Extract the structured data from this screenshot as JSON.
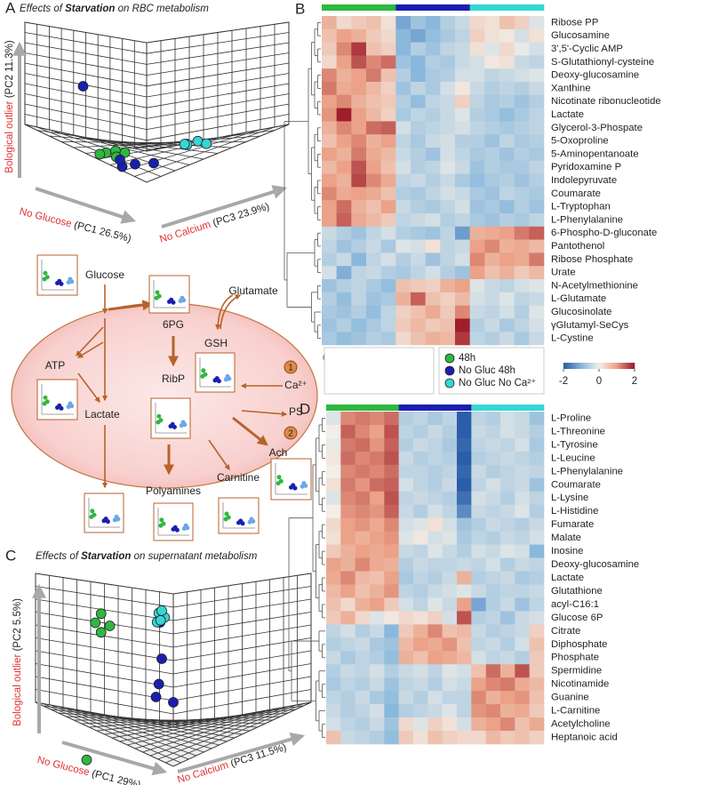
{
  "panel_a": {
    "letter": "A",
    "title": [
      "Effects of ",
      "Starvation",
      " on RBC metabolism"
    ],
    "y_label": [
      "Bological outlier ",
      "(PC2  11.3%)"
    ],
    "x1_label": [
      "No Glucose ",
      "(PC1 26.5%)"
    ],
    "x2_label": [
      "No Calcium ",
      "(PC3 23.9%)"
    ],
    "series": [
      {
        "values": [
          [
            0.7,
            -0.95,
            0
          ],
          [
            0.6,
            -0.9,
            0.05
          ],
          [
            0.5,
            -0.92,
            0.1
          ],
          [
            0.75,
            -0.98,
            -0.05
          ],
          [
            0.55,
            -1.0,
            0.02
          ]
        ]
      },
      {
        "values": [
          [
            0.3,
            -1.1,
            -0.1
          ],
          [
            0.2,
            -1.05,
            0
          ],
          [
            0.4,
            -1.0,
            -0.05
          ],
          [
            0.0,
            -1.0,
            0.1
          ],
          [
            1.1,
            0.3,
            0
          ]
        ]
      },
      {
        "values": [
          [
            0.05,
            -0.76,
            0.6
          ],
          [
            0.0,
            -0.72,
            0.72
          ],
          [
            -0.05,
            -0.78,
            0.8
          ],
          [
            0.1,
            -0.8,
            0.65
          ],
          [
            0.02,
            -0.74,
            0.55
          ]
        ]
      }
    ]
  },
  "panel_c": {
    "letter": "C",
    "title": [
      "Effects of ",
      "Starvation",
      " on supernatant metabolism"
    ],
    "y_label": [
      "Bological outlier ",
      "(PC2  5.5%)"
    ],
    "x1_label": [
      "No Glucose ",
      "(PC1 29%)"
    ],
    "x2_label": [
      "No Calcium ",
      "(PC3 11.5%)"
    ],
    "series": [
      {
        "values": [
          [
            1.2,
            0.97,
            -0.05
          ],
          [
            1.25,
            0.8,
            -0.1
          ],
          [
            1.1,
            0.75,
            0
          ],
          [
            1.2,
            0.62,
            -0.05
          ],
          [
            1.5,
            -1.83,
            0
          ]
        ]
      },
      {
        "values": [
          [
            0.2,
            0.97,
            -0.03
          ],
          [
            0.25,
            -0.2,
            0
          ],
          [
            0.3,
            -0.45,
            0
          ],
          [
            0,
            -0.5,
            0
          ],
          [
            0.15,
            0.3,
            -0.05
          ]
        ]
      },
      {
        "values": [
          [
            0.25,
            1.13,
            0
          ],
          [
            0.2,
            1.05,
            0.05
          ],
          [
            0.15,
            1.2,
            -0.05
          ],
          [
            0.3,
            0.95,
            0.02
          ],
          [
            0.22,
            1.0,
            0
          ]
        ]
      }
    ]
  },
  "legend": {
    "series": [
      {
        "name": "48h",
        "color": "#2fb83f"
      },
      {
        "name": "No Gluc 48h",
        "color": "#1a1fb0"
      },
      {
        "name": "No Gluc No Ca²⁺",
        "color": "#35d6d6"
      }
    ]
  },
  "pathway": {
    "nodes": [
      "Glucose",
      "6PG",
      "Glutamate",
      "GSH",
      "ATP",
      "RibP",
      "Ca²⁺",
      "PS",
      "Lactate",
      "Polyamines",
      "Carnitine",
      "Ach"
    ],
    "markers": [
      "1",
      "2",
      "1",
      "2"
    ]
  },
  "panel_b": {
    "letter": "B",
    "column_colors": [
      "#2fb83f",
      "#2fb83f",
      "#2fb83f",
      "#2fb83f",
      "#2fb83f",
      "#1a1fb0",
      "#1a1fb0",
      "#1a1fb0",
      "#1a1fb0",
      "#1a1fb0",
      "#35d6d6",
      "#35d6d6",
      "#35d6d6",
      "#35d6d6",
      "#35d6d6"
    ],
    "rows": [
      "Ribose PP",
      "Glucosamine",
      "3',5'-Cyclic AMP",
      "S-Glutathionyl-cysteine",
      "Deoxy-glucosamine",
      "Xanthine",
      "Nicotinate ribonucleotide",
      "Lactate",
      "Glycerol-3-Phospate",
      "5-Oxoproline",
      "5-Aminopentanoate",
      "Pyridoxamine P",
      "Indolepyruvate",
      "Coumarate",
      "L-Tryptophan",
      "L-Phenylalanine",
      "6-Phospho-D-gluconate",
      "Pantothenol",
      "Ribose Phosphate",
      "Urate",
      "N-Acetylmethionine",
      "L-Glutamate",
      "Glucosinolate",
      "γGlutamyl-SeCys",
      "L-Cystine"
    ],
    "values": [
      [
        0.8,
        0.3,
        0.5,
        0.6,
        0.2,
        -1.2,
        -0.8,
        -1.0,
        -0.6,
        -0.4,
        0.3,
        0.2,
        0.6,
        0.4,
        -0.2
      ],
      [
        0.6,
        1.0,
        0.8,
        0.5,
        0.3,
        -1.0,
        -1.2,
        -0.9,
        -0.7,
        -0.5,
        0.4,
        0.2,
        0.1,
        -0.3,
        0.2
      ],
      [
        0.5,
        1.2,
        1.8,
        0.6,
        0.4,
        -1.0,
        -0.6,
        -0.8,
        -0.5,
        -0.4,
        0.2,
        -0.2,
        0.3,
        -0.1,
        -0.3
      ],
      [
        0.3,
        1.0,
        1.6,
        1.2,
        1.4,
        -0.8,
        -1.0,
        -0.6,
        -0.7,
        -0.4,
        -0.3,
        0.1,
        0.2,
        -0.4,
        -0.5
      ],
      [
        1.2,
        0.8,
        1.0,
        1.3,
        0.6,
        -0.6,
        -1.0,
        -0.7,
        -0.6,
        -0.3,
        -0.3,
        -0.5,
        -0.4,
        -0.3,
        -0.2
      ],
      [
        1.3,
        0.9,
        1.0,
        0.7,
        0.4,
        -0.8,
        -0.5,
        -0.7,
        -0.3,
        0.1,
        -0.4,
        -0.6,
        -0.5,
        -0.6,
        -0.4
      ],
      [
        1.0,
        1.2,
        0.8,
        0.6,
        0.5,
        -0.6,
        -0.9,
        -0.5,
        -0.4,
        0.4,
        -0.5,
        -0.7,
        -0.6,
        -0.8,
        -0.6
      ],
      [
        1.1,
        2.0,
        1.0,
        0.7,
        0.4,
        -0.7,
        -0.5,
        -0.6,
        -0.4,
        -0.2,
        -0.6,
        -0.7,
        -0.9,
        -0.7,
        -0.5
      ],
      [
        0.8,
        1.2,
        1.0,
        1.4,
        1.5,
        -0.3,
        -0.6,
        -0.5,
        -0.4,
        -0.3,
        -0.5,
        -0.6,
        -0.7,
        -0.6,
        -0.5
      ],
      [
        0.6,
        1.0,
        1.2,
        0.8,
        1.0,
        -0.5,
        -0.7,
        -0.4,
        -0.3,
        -0.6,
        -0.6,
        -0.8,
        -0.5,
        -0.7,
        -0.6
      ],
      [
        1.0,
        0.8,
        1.3,
        0.9,
        0.7,
        -0.4,
        -0.6,
        -0.8,
        -0.3,
        -0.5,
        -0.7,
        -0.6,
        -0.8,
        -0.6,
        -0.7
      ],
      [
        0.7,
        1.0,
        1.6,
        1.0,
        0.6,
        -0.3,
        -0.6,
        -0.5,
        -0.2,
        -0.4,
        -0.8,
        -0.6,
        -0.7,
        -0.7,
        -0.5
      ],
      [
        1.0,
        0.8,
        1.7,
        1.2,
        0.9,
        -0.5,
        -0.4,
        -0.6,
        -0.4,
        -0.7,
        -0.9,
        -0.7,
        -0.6,
        -0.8,
        -0.6
      ],
      [
        1.2,
        0.9,
        1.0,
        0.9,
        0.6,
        -0.6,
        -0.7,
        -0.5,
        -0.3,
        -0.4,
        -0.7,
        -0.8,
        -0.5,
        -0.6,
        -0.7
      ],
      [
        1.0,
        1.4,
        0.8,
        0.6,
        1.0,
        -0.4,
        -0.6,
        -0.7,
        -0.5,
        -0.3,
        -0.8,
        -0.7,
        -0.9,
        -0.6,
        -0.8
      ],
      [
        1.0,
        1.5,
        0.9,
        0.7,
        0.5,
        -0.5,
        -0.4,
        -0.3,
        -0.6,
        -0.5,
        -0.7,
        -0.8,
        -0.6,
        -0.7,
        -0.5
      ],
      [
        -0.4,
        -0.6,
        -0.8,
        -0.5,
        -0.3,
        -0.6,
        -0.7,
        -0.8,
        -0.5,
        -1.3,
        0.8,
        0.9,
        1.0,
        1.3,
        1.5
      ],
      [
        -0.5,
        -0.8,
        -0.6,
        -0.4,
        -0.7,
        -0.2,
        -0.3,
        0.2,
        -0.5,
        -0.4,
        1.0,
        1.2,
        0.8,
        0.9,
        0.7
      ],
      [
        -0.6,
        -0.4,
        -1.0,
        -0.5,
        -0.3,
        -0.6,
        -0.4,
        -0.8,
        -0.5,
        -0.3,
        1.2,
        0.8,
        1.0,
        0.9,
        1.3
      ],
      [
        -0.3,
        -1.1,
        -0.5,
        -0.4,
        -0.6,
        -0.7,
        -0.5,
        -0.3,
        -0.6,
        -0.8,
        1.0,
        0.6,
        0.8,
        0.5,
        0.7
      ],
      [
        -0.8,
        -0.6,
        -0.5,
        -0.7,
        -0.9,
        0.6,
        0.5,
        0.4,
        0.8,
        1.0,
        -0.2,
        -0.4,
        -0.5,
        -0.3,
        -0.2
      ],
      [
        -0.6,
        -0.9,
        -0.5,
        -0.8,
        -0.7,
        0.8,
        1.5,
        0.6,
        0.4,
        0.7,
        -0.3,
        -0.4,
        -0.2,
        -0.5,
        -0.4
      ],
      [
        -0.7,
        -0.8,
        -0.6,
        -0.9,
        -0.5,
        0.4,
        0.6,
        0.9,
        0.5,
        1.2,
        -0.4,
        -0.5,
        -0.3,
        -0.6,
        -0.2
      ],
      [
        -0.8,
        -0.6,
        -0.9,
        -0.7,
        -0.5,
        0.5,
        0.7,
        0.5,
        0.6,
        2.0,
        -0.6,
        -0.4,
        -0.7,
        -0.5,
        -0.3
      ],
      [
        -0.7,
        -0.9,
        -0.8,
        -0.6,
        -0.7,
        0.3,
        0.6,
        0.8,
        0.7,
        1.8,
        -0.5,
        -0.6,
        -0.4,
        -0.7,
        -0.4
      ]
    ]
  },
  "panel_d": {
    "letter": "D",
    "column_colors": [
      "#2fb83f",
      "#2fb83f",
      "#2fb83f",
      "#2fb83f",
      "#2fb83f",
      "#1a1fb0",
      "#1a1fb0",
      "#1a1fb0",
      "#1a1fb0",
      "#1a1fb0",
      "#35d6d6",
      "#35d6d6",
      "#35d6d6",
      "#35d6d6",
      "#35d6d6"
    ],
    "rows": [
      "L-Proline",
      "L-Threonine",
      "L-Tyrosine",
      "L-Leucine",
      "L-Phenylalanine",
      "Coumarate",
      "L-Lysine",
      "L-Histidine",
      "Fumarate",
      "Malate",
      "Inosine",
      "Deoxy-glucosamine",
      "Lactate",
      "Glutathione",
      "acyl-C16:1",
      "Glucose 6P",
      "Citrate",
      "Diphosphate",
      "Phosphate",
      "Spermidine",
      "Nicotinamide",
      "Guanine",
      "L-Carnitine",
      "Acetylcholine",
      "Heptanoic acid"
    ],
    "values": [
      [
        -0.2,
        1.2,
        1.3,
        1.2,
        1.4,
        -0.6,
        -0.5,
        -0.7,
        -0.5,
        -2.0,
        -0.5,
        -0.6,
        -0.3,
        -0.4,
        -0.8
      ],
      [
        0.0,
        1.5,
        1.2,
        1.0,
        1.6,
        -0.5,
        -0.6,
        -0.4,
        -0.6,
        -2.0,
        -0.4,
        -0.5,
        -0.3,
        -0.4,
        -0.6
      ],
      [
        -0.1,
        1.3,
        1.4,
        1.1,
        1.5,
        -0.6,
        -0.4,
        -0.5,
        -0.7,
        -1.9,
        -0.5,
        -0.4,
        -0.5,
        -0.3,
        -0.7
      ],
      [
        0.1,
        1.4,
        1.2,
        1.3,
        1.6,
        -0.4,
        -0.6,
        -0.5,
        -0.6,
        -2.0,
        -0.6,
        -0.5,
        -0.4,
        -0.5,
        -0.6
      ],
      [
        0.0,
        1.2,
        1.3,
        1.2,
        1.4,
        -0.5,
        -0.5,
        -0.6,
        -0.5,
        -1.9,
        -0.4,
        -0.6,
        -0.5,
        -0.4,
        -0.5
      ],
      [
        0.2,
        1.3,
        1.1,
        1.4,
        1.5,
        -0.3,
        -0.5,
        -0.6,
        -0.4,
        -2.0,
        -0.5,
        -0.3,
        -0.5,
        -0.4,
        -0.8
      ],
      [
        -0.2,
        1.2,
        1.3,
        1.0,
        1.6,
        -0.5,
        -0.4,
        -0.5,
        -0.6,
        -1.8,
        -0.3,
        -0.4,
        -0.6,
        -0.3,
        -0.5
      ],
      [
        0.0,
        1.1,
        1.2,
        1.1,
        1.5,
        -0.4,
        -0.6,
        -0.3,
        -0.5,
        -1.5,
        -0.4,
        -0.5,
        -0.4,
        -0.2,
        -0.6
      ],
      [
        0.3,
        1.0,
        1.1,
        0.9,
        1.2,
        -0.3,
        -0.2,
        0.2,
        -0.3,
        -0.8,
        -0.6,
        -0.4,
        -0.5,
        -0.6,
        -0.4
      ],
      [
        0.2,
        1.0,
        0.8,
        1.0,
        1.1,
        -0.2,
        0.1,
        -0.3,
        -0.2,
        -0.7,
        -0.5,
        -0.6,
        -0.4,
        -0.5,
        -0.3
      ],
      [
        0.5,
        0.8,
        1.0,
        0.9,
        1.0,
        -0.4,
        -0.5,
        -0.2,
        -0.4,
        -0.6,
        -0.3,
        -0.4,
        -0.2,
        -0.3,
        -1.0
      ],
      [
        1.0,
        0.8,
        1.2,
        0.9,
        0.8,
        -0.6,
        -0.4,
        -0.5,
        -0.5,
        -0.4,
        -0.5,
        -0.3,
        -0.6,
        -0.4,
        -0.5
      ],
      [
        0.9,
        1.2,
        0.7,
        0.6,
        1.0,
        -0.7,
        -0.5,
        -0.6,
        -0.4,
        0.8,
        -0.6,
        -0.5,
        -0.4,
        -0.7,
        -0.6
      ],
      [
        0.7,
        1.0,
        0.6,
        0.8,
        1.1,
        -0.5,
        -0.6,
        -0.4,
        -0.3,
        -0.2,
        -0.4,
        -0.6,
        -0.5,
        -0.5,
        -0.4
      ],
      [
        0.6,
        0.3,
        0.8,
        1.0,
        0.5,
        -0.3,
        -0.5,
        -0.2,
        -0.4,
        1.0,
        -1.2,
        -0.6,
        -0.4,
        -0.8,
        -0.5
      ],
      [
        0.5,
        0.8,
        0.3,
        -0.2,
        0.1,
        0.3,
        0.2,
        0.4,
        -0.3,
        1.6,
        -0.6,
        -0.5,
        -0.8,
        -0.4,
        -0.3
      ],
      [
        -0.5,
        -0.3,
        -0.6,
        -0.4,
        -1.0,
        0.5,
        0.8,
        1.2,
        0.6,
        0.7,
        -0.4,
        -0.6,
        -0.5,
        -0.4,
        0.4
      ],
      [
        -0.6,
        -0.5,
        -0.4,
        -0.7,
        -0.8,
        0.7,
        1.0,
        0.9,
        1.1,
        0.6,
        -0.5,
        -0.4,
        -0.6,
        -0.3,
        0.6
      ],
      [
        -0.4,
        -0.7,
        -0.5,
        -0.6,
        -0.9,
        0.8,
        0.6,
        1.0,
        0.9,
        0.7,
        -0.3,
        -0.5,
        -0.4,
        -0.6,
        0.5
      ],
      [
        -0.6,
        -0.4,
        -0.5,
        -0.3,
        -0.6,
        -0.4,
        -0.3,
        -0.5,
        -0.2,
        -0.3,
        0.6,
        1.4,
        0.8,
        1.6,
        0.5
      ],
      [
        -0.7,
        -0.5,
        -0.6,
        -0.4,
        -0.8,
        -0.5,
        -0.4,
        -0.6,
        -0.3,
        -0.4,
        1.0,
        1.2,
        1.3,
        0.9,
        0.7
      ],
      [
        -0.5,
        -0.6,
        -0.4,
        -0.7,
        -0.9,
        -0.4,
        -0.6,
        -0.3,
        -0.5,
        -0.5,
        1.2,
        0.8,
        1.0,
        1.1,
        0.6
      ],
      [
        -0.4,
        -0.6,
        -0.5,
        -0.3,
        -1.0,
        -0.6,
        -0.5,
        -0.4,
        -0.2,
        -0.5,
        1.1,
        1.2,
        0.8,
        0.9,
        0.5
      ],
      [
        -0.3,
        -0.5,
        -0.6,
        -0.4,
        -0.8,
        0.3,
        -0.2,
        0.4,
        0.2,
        -0.3,
        0.8,
        1.0,
        1.2,
        0.6,
        0.9
      ],
      [
        0.6,
        -0.4,
        -0.5,
        -0.6,
        -0.9,
        0.5,
        0.2,
        0.6,
        0.4,
        0.3,
        0.3,
        0.7,
        0.5,
        0.6,
        0.4
      ]
    ]
  },
  "colorbar": {
    "lim": [
      -2,
      2
    ],
    "ticks": [
      -2,
      0,
      2
    ],
    "colors": [
      "#2b5ea8",
      "#8ab8dc",
      "#f2efe9",
      "#eba288",
      "#9e1e2b"
    ]
  }
}
